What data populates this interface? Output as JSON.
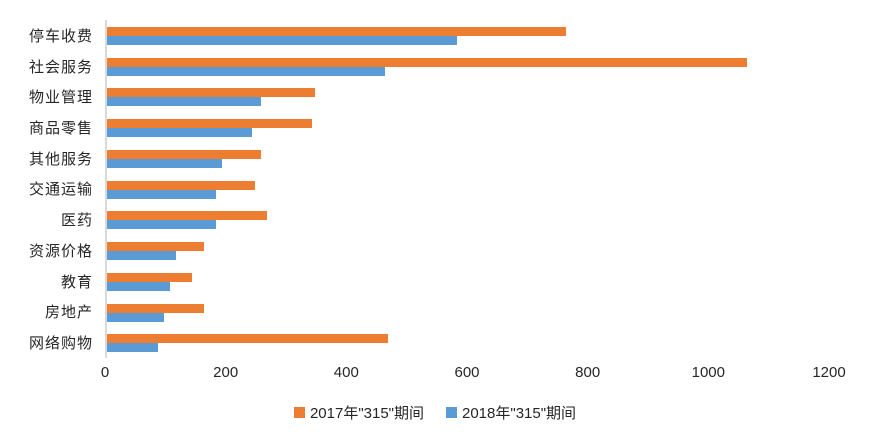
{
  "chart_data": {
    "type": "bar",
    "orientation": "horizontal",
    "title": "",
    "categories": [
      "停车收费",
      "社会服务",
      "物业管理",
      "商品零售",
      "其他服务",
      "交通运输",
      "医药",
      "资源价格",
      "教育",
      "房地产",
      "网络购物"
    ],
    "series": [
      {
        "name": "2017年\"315\"期间",
        "color": "#ED7D31",
        "values": [
          760,
          1060,
          345,
          340,
          255,
          245,
          265,
          160,
          140,
          160,
          465
        ]
      },
      {
        "name": "2018年\"315\"期间",
        "color": "#5B9BD5",
        "values": [
          580,
          460,
          255,
          240,
          190,
          180,
          180,
          115,
          105,
          95,
          85
        ]
      }
    ],
    "xlabel": "",
    "ylabel": "",
    "xlim": [
      0,
      1200
    ],
    "x_ticks": [
      0,
      200,
      400,
      600,
      800,
      1000,
      1200
    ],
    "grid": false,
    "legend_position": "bottom",
    "axis_line_color": "#D9D9D9",
    "text_color": "#262626"
  }
}
